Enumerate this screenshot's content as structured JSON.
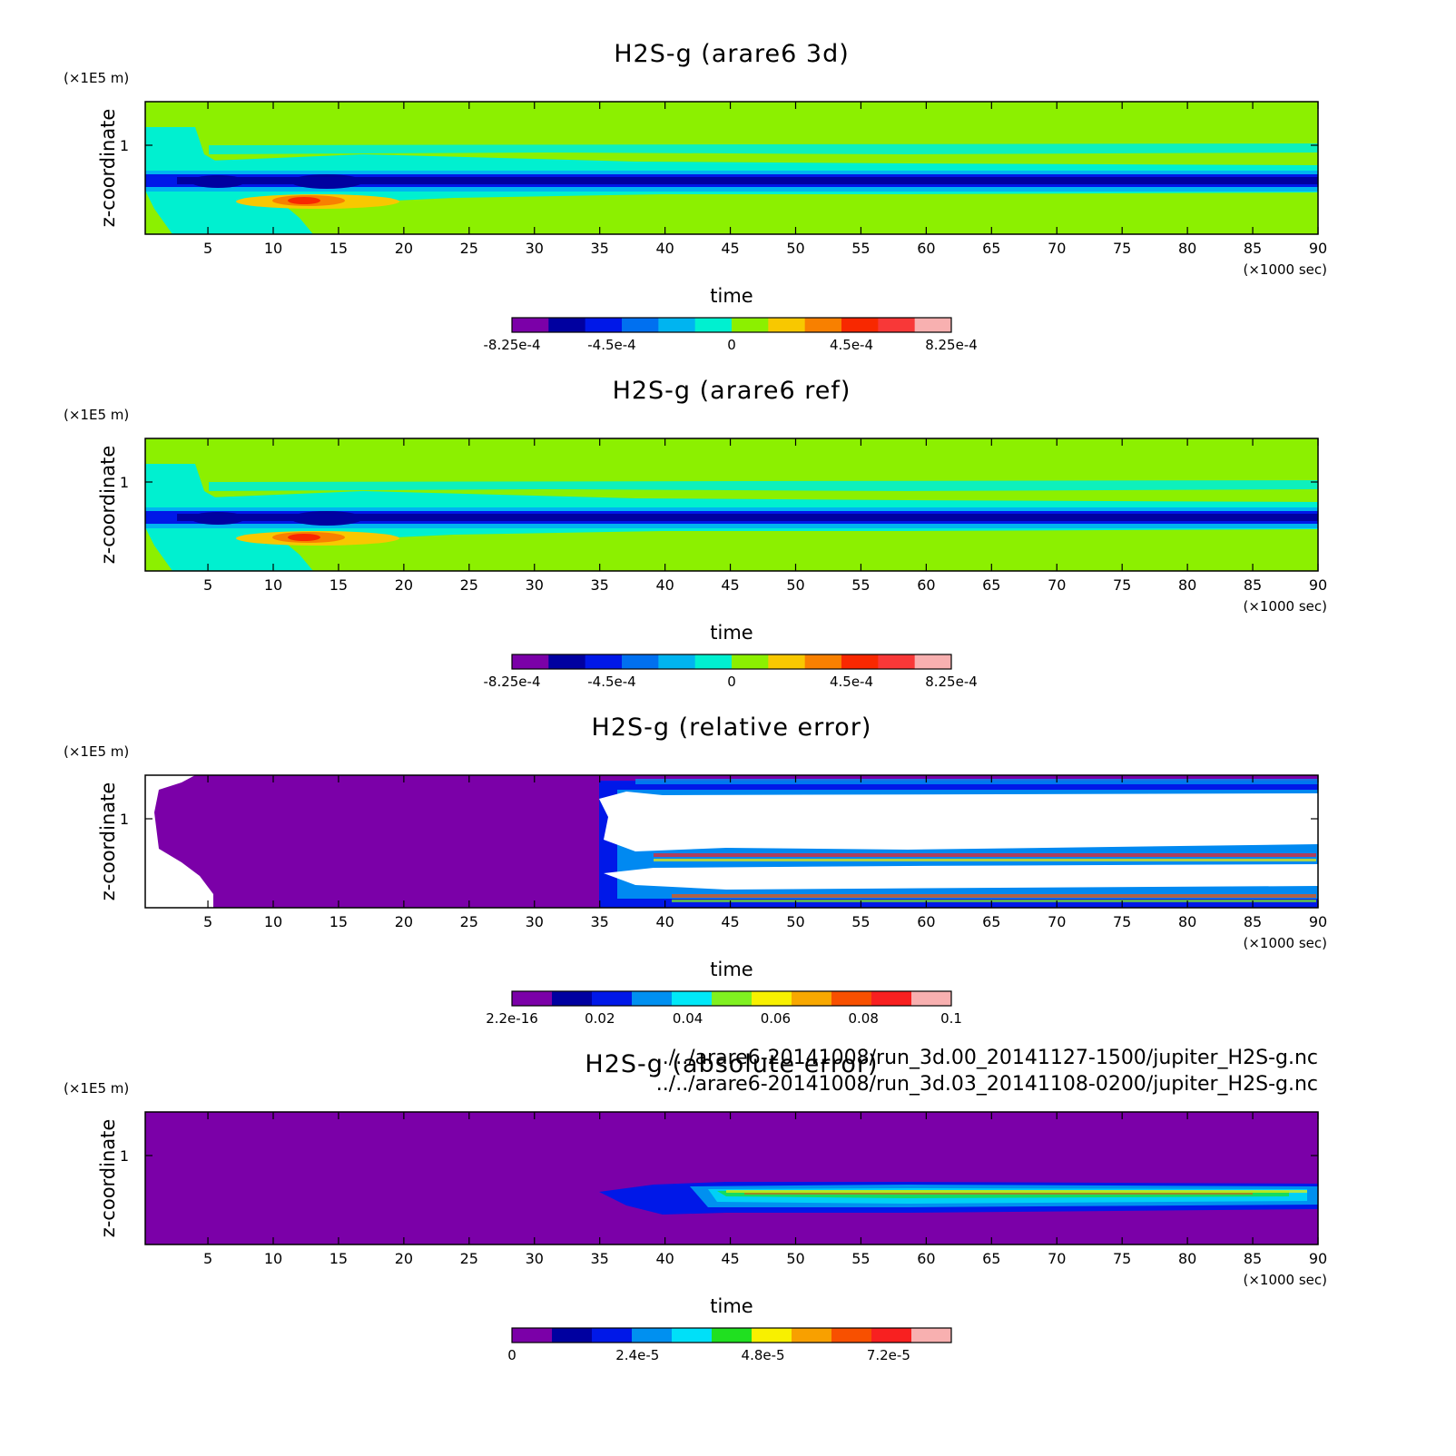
{
  "chart_data": [
    {
      "type": "heatmap",
      "title": "H2S-g (arare6 3d)",
      "xlabel": "time",
      "ylabel": "z-coordinate",
      "x_unit": "(×1000 sec)",
      "y_unit": "(×1E5 m)",
      "xlim": [
        0.2,
        90
      ],
      "ylim": [
        0.02,
        1.5
      ],
      "xticks": [
        "5",
        "10",
        "15",
        "20",
        "25",
        "30",
        "35",
        "40",
        "45",
        "50",
        "55",
        "60",
        "65",
        "70",
        "75",
        "80",
        "85",
        "90"
      ],
      "yticks": [
        "1"
      ],
      "colorbar": {
        "ticks": [
          "-8.25e-4",
          "-4.5e-4",
          "0",
          "4.5e-4",
          "8.25e-4"
        ],
        "range": [
          -0.000825,
          0.000825
        ],
        "colors": [
          "#7b00a8",
          "#0000a0",
          "#0018e8",
          "#0070f0",
          "#00b4f0",
          "#00f0d0",
          "#8cf000",
          "#f8c800",
          "#f88000",
          "#f82800",
          "#f83838",
          "#f8b0b0"
        ]
      }
    },
    {
      "type": "heatmap",
      "title": "H2S-g (arare6 ref)",
      "xlabel": "time",
      "ylabel": "z-coordinate",
      "x_unit": "(×1000 sec)",
      "y_unit": "(×1E5 m)",
      "xlim": [
        0.2,
        90
      ],
      "ylim": [
        0.02,
        1.5
      ],
      "xticks": [
        "5",
        "10",
        "15",
        "20",
        "25",
        "30",
        "35",
        "40",
        "45",
        "50",
        "55",
        "60",
        "65",
        "70",
        "75",
        "80",
        "85",
        "90"
      ],
      "yticks": [
        "1"
      ],
      "colorbar": {
        "ticks": [
          "-8.25e-4",
          "-4.5e-4",
          "0",
          "4.5e-4",
          "8.25e-4"
        ],
        "range": [
          -0.000825,
          0.000825
        ],
        "colors": [
          "#7b00a8",
          "#0000a0",
          "#0018e8",
          "#0070f0",
          "#00b4f0",
          "#00f0d0",
          "#8cf000",
          "#f8c800",
          "#f88000",
          "#f82800",
          "#f83838",
          "#f8b0b0"
        ]
      }
    },
    {
      "type": "heatmap",
      "title": "H2S-g (relative error)",
      "xlabel": "time",
      "ylabel": "z-coordinate",
      "x_unit": "(×1000 sec)",
      "y_unit": "(×1E5 m)",
      "xlim": [
        0.2,
        90
      ],
      "ylim": [
        0.02,
        1.5
      ],
      "xticks": [
        "5",
        "10",
        "15",
        "20",
        "25",
        "30",
        "35",
        "40",
        "45",
        "50",
        "55",
        "60",
        "65",
        "70",
        "75",
        "80",
        "85",
        "90"
      ],
      "yticks": [
        "1"
      ],
      "colorbar": {
        "ticks": [
          "2.2e-16",
          "0.02",
          "0.04",
          "0.06",
          "0.08",
          "0.1"
        ],
        "range": [
          0,
          0.1
        ],
        "colors": [
          "#7b00a8",
          "#0000a0",
          "#0018e8",
          "#0090f0",
          "#00e8f8",
          "#80f020",
          "#f8f000",
          "#f8a800",
          "#f85000",
          "#f82020",
          "#f8b0b0"
        ]
      }
    },
    {
      "type": "heatmap",
      "title": "H2S-g (absolute error)",
      "xlabel": "time",
      "ylabel": "z-coordinate",
      "x_unit": "(×1000 sec)",
      "y_unit": "(×1E5 m)",
      "xlim": [
        0.2,
        90
      ],
      "ylim": [
        0.02,
        1.5
      ],
      "xticks": [
        "5",
        "10",
        "15",
        "20",
        "25",
        "30",
        "35",
        "40",
        "45",
        "50",
        "55",
        "60",
        "65",
        "70",
        "75",
        "80",
        "85",
        "90"
      ],
      "yticks": [
        "1"
      ],
      "colorbar": {
        "ticks": [
          "0",
          "2.4e-5",
          "4.8e-5",
          "7.2e-5"
        ],
        "range": [
          0,
          8.4e-05
        ],
        "colors": [
          "#7b00a8",
          "#0000a0",
          "#0018e8",
          "#0090f0",
          "#00e0f8",
          "#20e020",
          "#f8f000",
          "#f8a000",
          "#f85000",
          "#f82020",
          "#f8b0b0"
        ]
      }
    }
  ],
  "files": [
    "../../arare6-20141008/run_3d.00_20141127-1500/jupiter_H2S-g.nc",
    "../../arare6-20141008/run_3d.03_20141108-0200/jupiter_H2S-g.nc"
  ]
}
